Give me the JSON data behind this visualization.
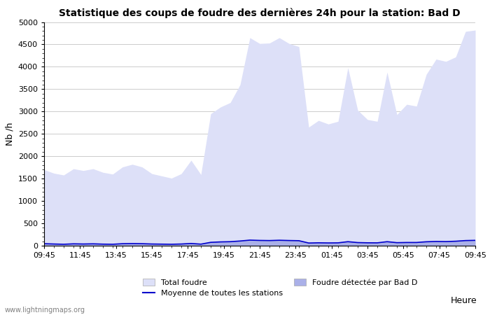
{
  "title": "Statistique des coups de foudre des dernières 24h pour la station: Bad D",
  "xlabel": "Heure",
  "ylabel": "Nb /h",
  "ylim": [
    0,
    5000
  ],
  "yticks": [
    0,
    500,
    1000,
    1500,
    2000,
    2500,
    3000,
    3500,
    4000,
    4500,
    5000
  ],
  "x_labels": [
    "09:45",
    "11:45",
    "13:45",
    "15:45",
    "17:45",
    "19:45",
    "21:45",
    "23:45",
    "01:45",
    "03:45",
    "05:45",
    "07:45",
    "09:45"
  ],
  "watermark": "www.lightningmaps.org",
  "color_total": "#dde0f8",
  "color_detected": "#aab0e8",
  "color_mean": "#0000cc",
  "total_foudre": [
    1700,
    1620,
    1580,
    1720,
    1680,
    1720,
    1640,
    1600,
    1760,
    1820,
    1760,
    1610,
    1560,
    1510,
    1610,
    1910,
    1590,
    2950,
    3100,
    3200,
    3600,
    4650,
    4520,
    4530,
    4650,
    4520,
    4450,
    2650,
    2800,
    2720,
    2780,
    3980,
    3030,
    2820,
    2780,
    3880,
    2930,
    3160,
    3120,
    3830,
    4170,
    4120,
    4220,
    4790,
    4820
  ],
  "detected_bad_d": [
    50,
    40,
    35,
    45,
    40,
    45,
    38,
    35,
    48,
    52,
    48,
    42,
    38,
    35,
    40,
    55,
    38,
    80,
    90,
    95,
    110,
    130,
    125,
    120,
    130,
    122,
    118,
    65,
    70,
    65,
    68,
    95,
    75,
    70,
    68,
    95,
    72,
    78,
    76,
    92,
    100,
    97,
    105,
    120,
    125
  ],
  "mean_all": [
    45,
    38,
    32,
    42,
    38,
    42,
    35,
    32,
    45,
    48,
    45,
    38,
    35,
    32,
    38,
    50,
    35,
    75,
    85,
    90,
    105,
    125,
    118,
    115,
    122,
    116,
    112,
    60,
    65,
    62,
    64,
    90,
    70,
    65,
    64,
    90,
    68,
    72,
    72,
    88,
    95,
    92,
    100,
    115,
    120
  ]
}
